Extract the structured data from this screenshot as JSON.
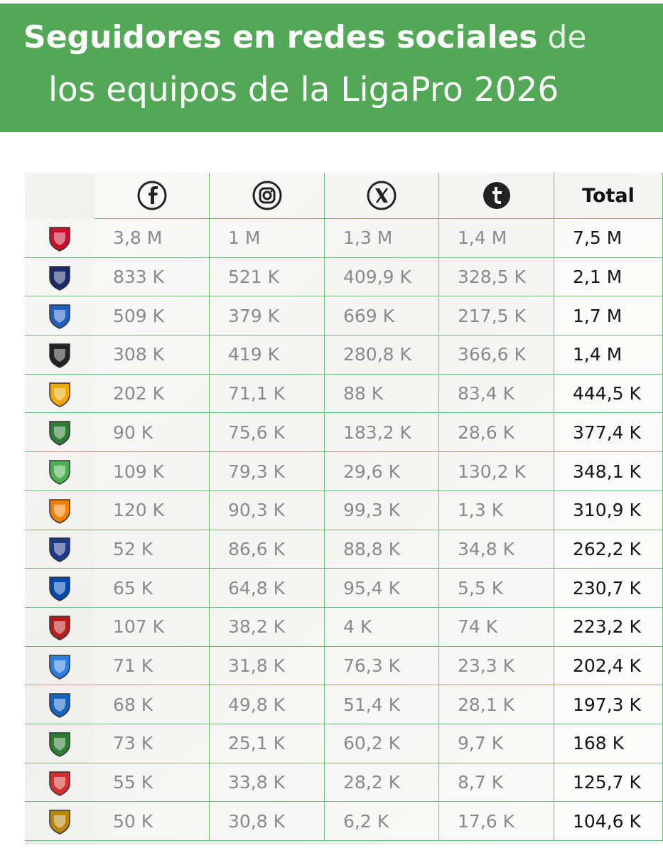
{
  "header": {
    "title_bold": "Seguidores en redes sociales",
    "title_rest": "de",
    "title_line2": "los equipos de la LigaPro 2026"
  },
  "table": {
    "total_header": "Total",
    "rows": [
      [
        "3,8 M",
        "1 M",
        "1,3 M",
        "1,4 M",
        "7,5 M"
      ],
      [
        "833 K",
        "521 K",
        "409,9 K",
        "328,5 K",
        "2,1 M"
      ],
      [
        "509 K",
        "379 K",
        "669 K",
        "217,5 K",
        "1,7 M"
      ],
      [
        "308 K",
        "419 K",
        "280,8 K",
        "366,6 K",
        "1,4 M"
      ],
      [
        "202 K",
        "71,1 K",
        "88 K",
        "83,4 K",
        "444,5 K"
      ],
      [
        "90 K",
        "75,6 K",
        "183,2 K",
        "28,6 K",
        "377,4 K"
      ],
      [
        "109 K",
        "79,3 K",
        "29,6 K",
        "130,2 K",
        "348,1 K"
      ],
      [
        "120 K",
        "90,3 K",
        "99,3 K",
        "1,3 K",
        "310,9 K"
      ],
      [
        "52 K",
        "86,6 K",
        "88,8 K",
        "34,8 K",
        "262,2 K"
      ],
      [
        "65 K",
        "64,8 K",
        "95,4 K",
        "5,5 K",
        "230,7 K"
      ],
      [
        "107 K",
        "38,2 K",
        "4 K",
        "74 K",
        "223,2 K"
      ],
      [
        "71 K",
        "31,8 K",
        "76,3 K",
        "23,3 K",
        "202,4 K"
      ],
      [
        "68 K",
        "49,8 K",
        "51,4 K",
        "28,1 K",
        "197,3 K"
      ],
      [
        "73 K",
        "25,1 K",
        "60,2 K",
        "9,7 K",
        "168 K"
      ],
      [
        "55 K",
        "33,8 K",
        "28,2 K",
        "8,7 K",
        "125,7 K"
      ],
      [
        "50 K",
        "30,8 K",
        "6,2 K",
        "17,6 K",
        "104,6 K"
      ]
    ]
  }
}
